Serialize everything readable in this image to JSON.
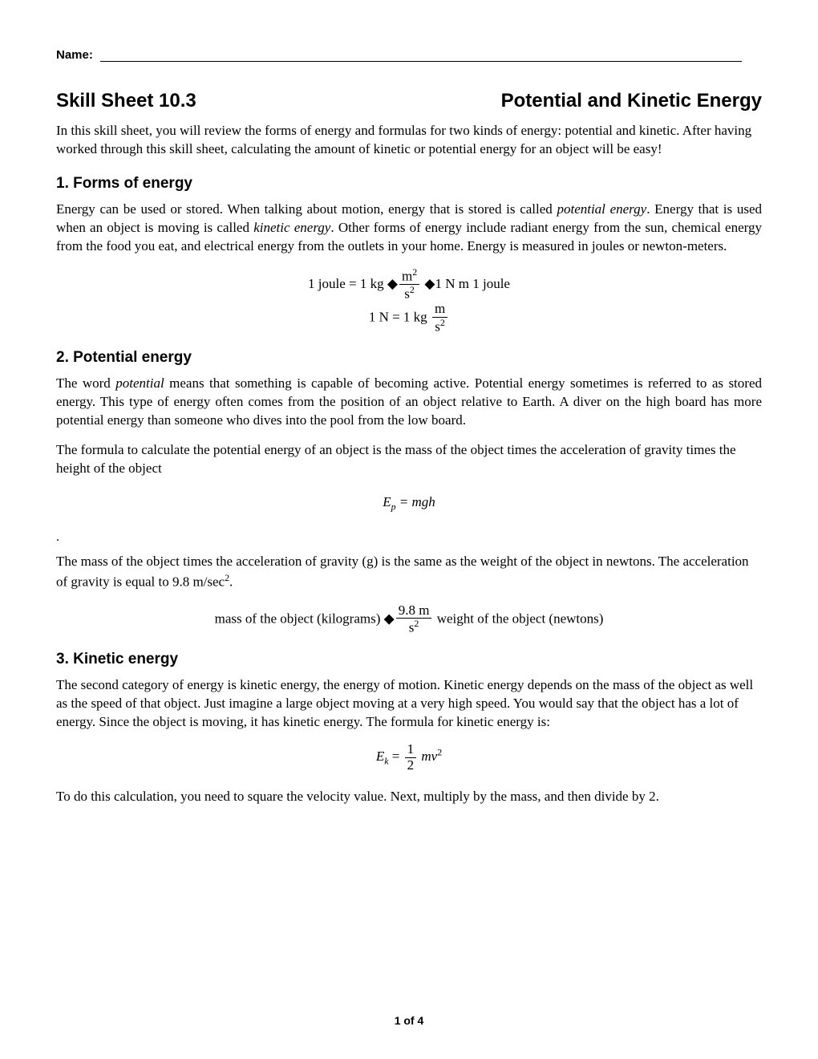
{
  "name_label": "Name:",
  "header": {
    "skill_sheet": "Skill Sheet 10.3",
    "topic": "Potential and Kinetic Energy"
  },
  "intro": "In this skill sheet, you will review the forms of energy and formulas for two kinds of energy: potential and kinetic. After having worked through this skill sheet, calculating the amount of kinetic or potential energy for an object will be easy!",
  "section1": {
    "heading": "1.  Forms of energy",
    "p1_a": "Energy can be used or stored. When talking about motion, energy that is stored is called ",
    "p1_i1": "potential energy",
    "p1_b": ". Energy that is used when an object is moving is called ",
    "p1_i2": "kinetic energy",
    "p1_c": ". Other forms of energy include radiant energy from the sun, chemical energy from the food you eat, and electrical energy from the outlets in your home. Energy is measured in joules or newton-meters.",
    "formula1_prefix": "1 joule = 1 kg ",
    "formula1_num": "m",
    "formula1_den_s": "s",
    "formula1_mid": "1 N   m    1 joule",
    "formula2_prefix": "1 N = 1 kg  ",
    "formula2_num": "m",
    "formula2_den_s": "s"
  },
  "section2": {
    "heading": "2.  Potential energy",
    "p1_a": "The word ",
    "p1_i1": "potential",
    "p1_b": " means that something is capable of becoming active. Potential energy sometimes is referred to as stored energy. This type of energy often comes from the position of an object relative to Earth. A diver on the high board has more potential energy than someone who dives into the pool from the low board.",
    "p2": "The formula to calculate the potential energy of an object is the mass of the object times the acceleration of gravity times the height of the object",
    "formula_ep": "E",
    "formula_ep_sub": "p",
    "formula_ep_rhs": " = mgh",
    "dot": ".",
    "p3_a": "The mass of the object times the acceleration of gravity (g) is the same as the weight of the object in newtons. The acceleration of gravity is equal to 9.8 m/sec",
    "p3_sup": "2",
    "p3_b": ".",
    "formula3_prefix": "mass of the object (kilograms) ",
    "formula3_num": "9.8 m",
    "formula3_den_s": "s",
    "formula3_suffix": "    weight of the object (newtons)"
  },
  "section3": {
    "heading": "3.  Kinetic energy",
    "p1": "The second category of energy is kinetic energy, the energy of motion. Kinetic energy depends on the mass of the object as well as the speed of that object. Just imagine a large object moving at a very high speed. You would say that the object has a lot of energy. Since the object is moving, it has kinetic energy. The formula for kinetic energy is:",
    "formula_ek": "E",
    "formula_ek_sub": "k",
    "formula_ek_eq": " = ",
    "formula_ek_num": "1",
    "formula_ek_den": "2",
    "formula_ek_mv": " mv",
    "formula_ek_sup": "2",
    "p2": "To do this calculation, you need to square the velocity value. Next, multiply by the mass, and then divide by 2."
  },
  "page_number": "1 of 4",
  "diamond": "◆"
}
